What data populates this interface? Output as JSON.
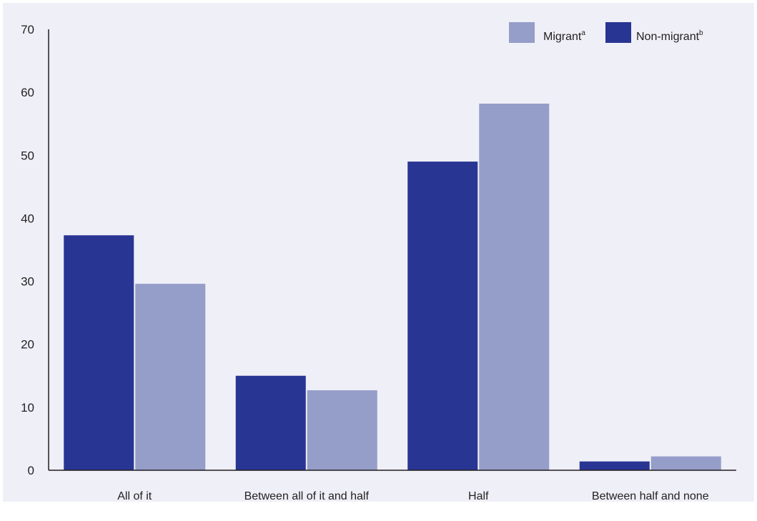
{
  "chart_data": {
    "type": "bar",
    "title": "",
    "xlabel": "",
    "ylabel": "",
    "ylim": [
      0,
      70
    ],
    "yticks": [
      0,
      10,
      20,
      30,
      40,
      50,
      60,
      70
    ],
    "grid": false,
    "legend_position": "top-right",
    "categories": [
      "All of it",
      "Between all of it and half",
      "Half",
      "Between half and none"
    ],
    "series": [
      {
        "name": "Non-migrant",
        "legend_superscript": "b",
        "color": "#283593",
        "values": [
          37.3,
          15.0,
          49.0,
          1.4
        ]
      },
      {
        "name": "Migrant",
        "legend_superscript": "a",
        "color": "#959dc9",
        "values": [
          29.6,
          12.7,
          58.2,
          2.2
        ]
      }
    ],
    "legend_order": [
      1,
      0
    ],
    "colors": {
      "background": "#efeff7",
      "axis": "#231f20"
    }
  }
}
